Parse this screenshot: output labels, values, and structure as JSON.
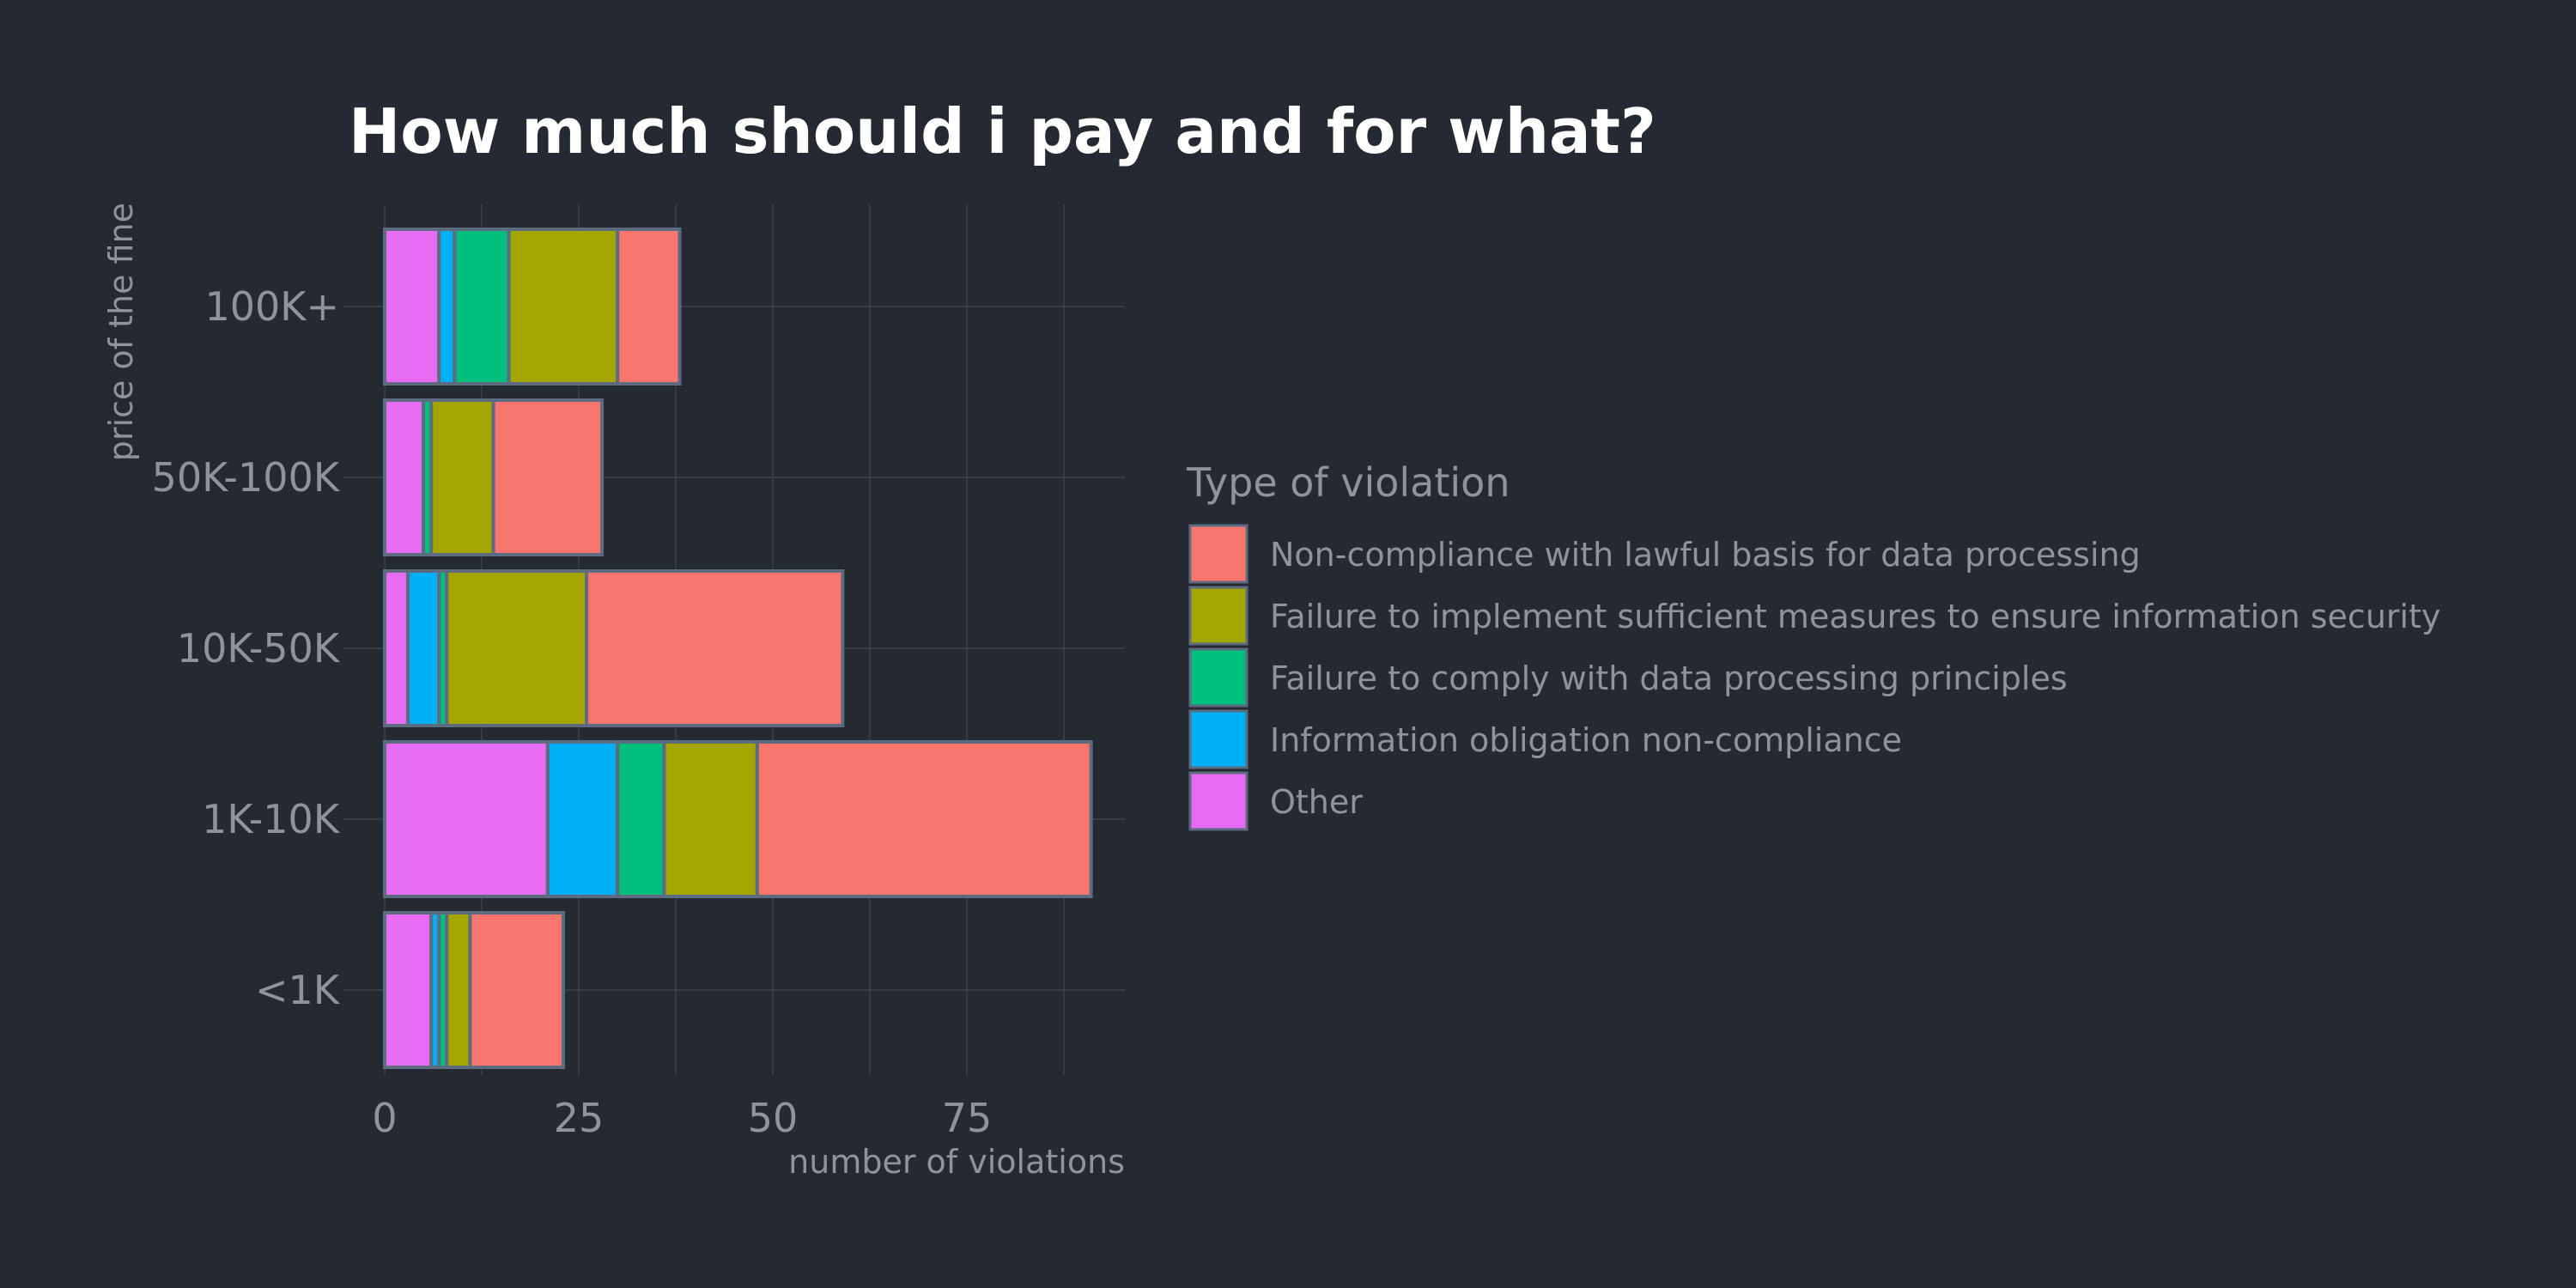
{
  "chart_data": {
    "type": "bar",
    "orientation": "horizontal",
    "stacked": true,
    "title": "How much should i pay and for what?",
    "xlabel": "number of violations",
    "ylabel": "price of the fine",
    "xlim": [
      0,
      95
    ],
    "xticks": [
      0,
      25,
      50,
      75
    ],
    "grid": true,
    "legend_title": "Type of violation",
    "legend_position": "right",
    "categories": [
      "<1K",
      "1K-10K",
      "10K-50K",
      "50K-100K",
      "100K+"
    ],
    "series": [
      {
        "name": "Other",
        "color": "#e76bf3",
        "values": [
          6,
          21,
          3,
          5,
          7
        ]
      },
      {
        "name": "Information obligation non-compliance",
        "color": "#00b0f6",
        "values": [
          1,
          9,
          4,
          0,
          2
        ]
      },
      {
        "name": "Failure to comply with data processing principles",
        "color": "#00bf7d",
        "values": [
          1,
          6,
          1,
          1,
          7
        ]
      },
      {
        "name": "Failure to implement sufficient measures to ensure information security",
        "color": "#a3a500",
        "values": [
          3,
          12,
          18,
          8,
          14
        ]
      },
      {
        "name": "Non-compliance with lawful basis for data processing",
        "color": "#f8766d",
        "values": [
          12,
          43,
          33,
          14,
          8
        ]
      }
    ],
    "legend_order": [
      "Non-compliance with lawful basis for data processing",
      "Failure to implement sufficient measures to ensure information security",
      "Failure to comply with data processing principles",
      "Information obligation non-compliance",
      "Other"
    ]
  }
}
